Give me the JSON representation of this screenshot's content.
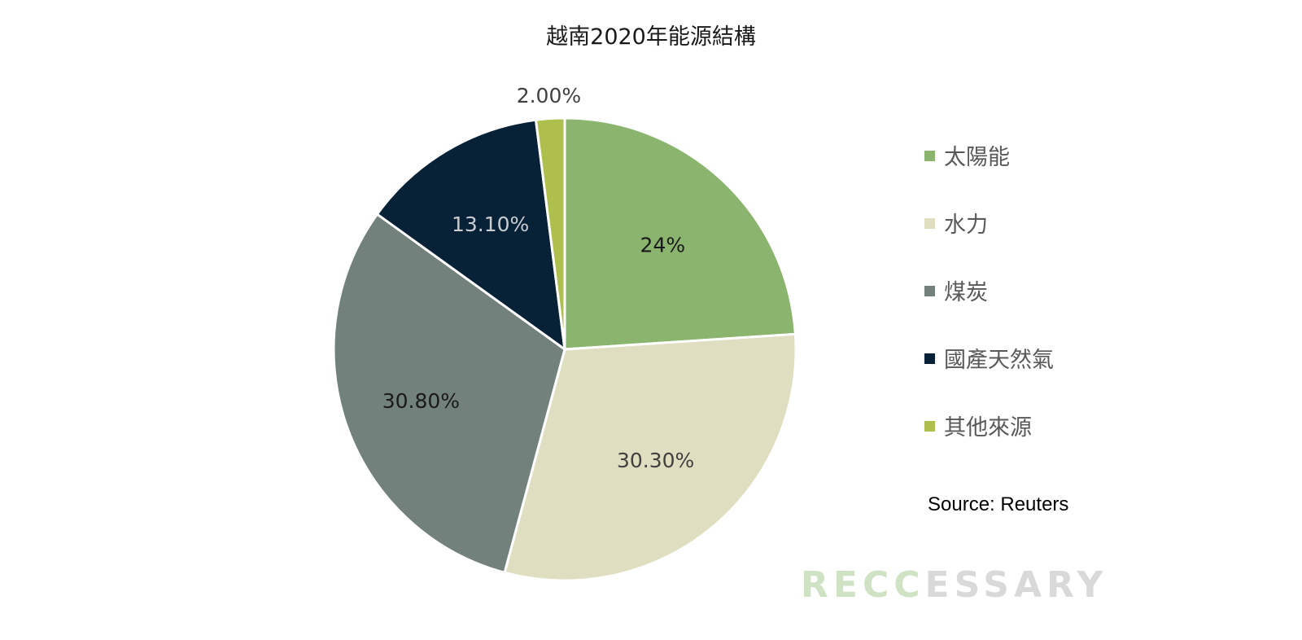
{
  "chart_data": {
    "type": "pie",
    "title": "越南2020年能源結構",
    "slices": [
      {
        "label": "太陽能",
        "value": 24,
        "display": "24%",
        "color": "#8BB46E",
        "label_color": "#1a1a1a"
      },
      {
        "label": "水力",
        "value": 30.3,
        "display": "30.30%",
        "color": "#E0DEC1",
        "label_color": "#404040"
      },
      {
        "label": "煤炭",
        "value": 30.8,
        "display": "30.80%",
        "color": "#72817B",
        "label_color": "#1a1a1a"
      },
      {
        "label": "國產天然氣",
        "value": 13.1,
        "display": "13.10%",
        "color": "#072137",
        "label_color": "#c8cdd2"
      },
      {
        "label": "其他來源",
        "value": 2,
        "display": "2.00%",
        "color": "#AEBF4E",
        "label_color": "#404040"
      }
    ],
    "start_angle_deg": 0,
    "direction": "clockwise",
    "legend_position": "right"
  },
  "source": "Source: Reuters",
  "watermark": {
    "text": "RECCESSARY",
    "green_part": "RECC",
    "grey_part": "ESSARY",
    "green_color": "#cfe2c3",
    "grey_color": "#d9d9d9"
  }
}
